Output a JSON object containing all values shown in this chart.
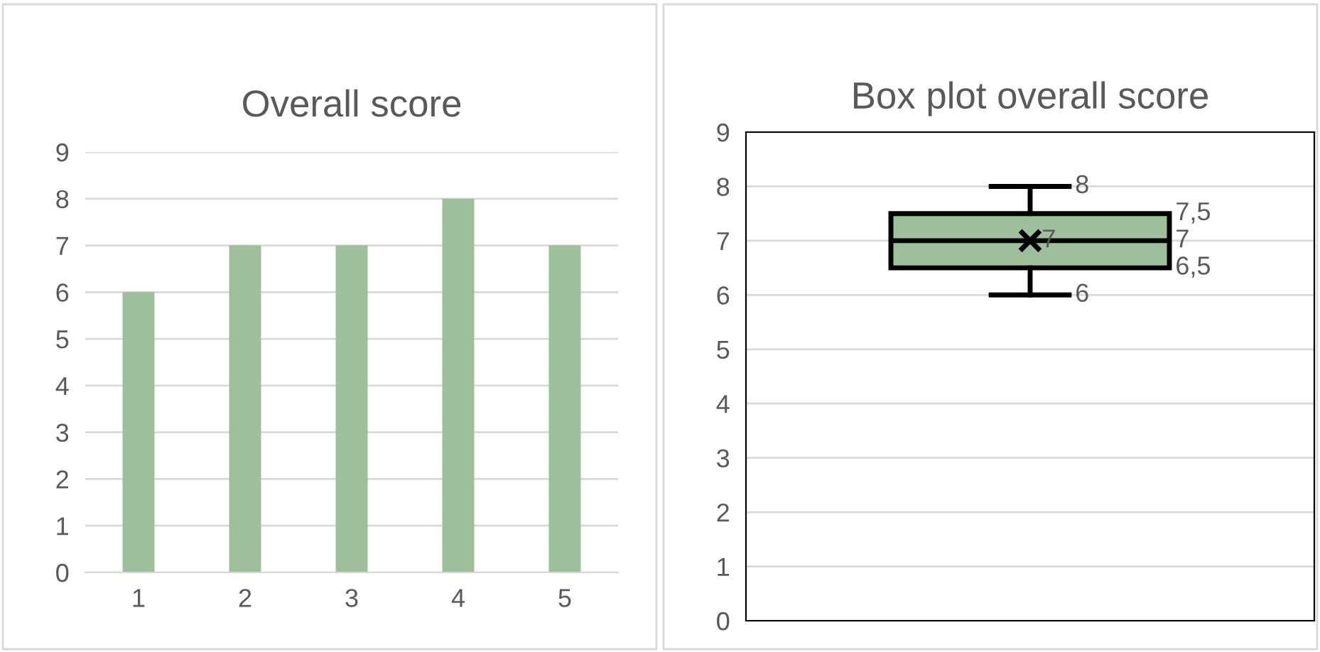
{
  "chart_data": [
    {
      "type": "bar",
      "title": "Overall score",
      "categories": [
        "1",
        "2",
        "3",
        "4",
        "5"
      ],
      "values": [
        6,
        7,
        7,
        8,
        7
      ],
      "color": "#9dc09a",
      "ylim": [
        0,
        9
      ],
      "yticks": [
        0,
        1,
        2,
        3,
        4,
        5,
        6,
        7,
        8,
        9
      ],
      "grid": "y"
    },
    {
      "type": "box",
      "title": "Box plot overall score",
      "categories": [
        null
      ],
      "boxes": [
        {
          "low": 6,
          "q1": 6.5,
          "median": 7,
          "q3": 7.5,
          "high": 8,
          "mean": 7
        }
      ],
      "color": "#9dc09a",
      "ylim": [
        0,
        9
      ],
      "yticks": [
        0,
        1,
        2,
        3,
        4,
        5,
        6,
        7,
        8,
        9
      ],
      "grid": "y",
      "tick_labels": "y",
      "annotations": [
        "8",
        "7,5",
        "7",
        "7",
        "6,5",
        "6"
      ]
    }
  ]
}
